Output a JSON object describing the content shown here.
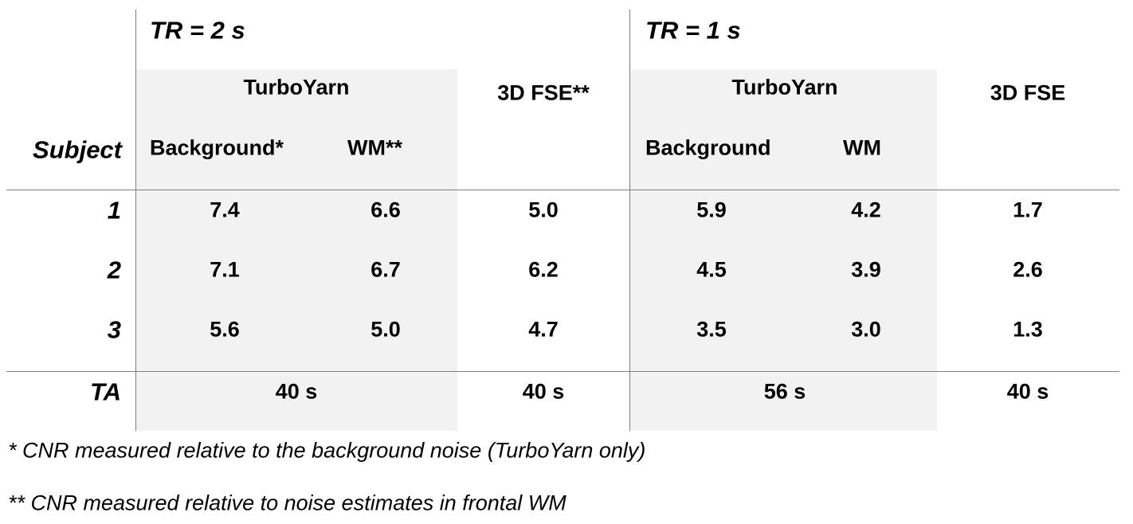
{
  "groups": [
    {
      "title": "TR = 2 s",
      "method": "TurboYarn",
      "columns": [
        "Background*",
        "WM**"
      ],
      "fse": "3D FSE**"
    },
    {
      "title": "TR = 1 s",
      "method": "TurboYarn",
      "columns": [
        "Background",
        "WM"
      ],
      "fse": "3D FSE"
    }
  ],
  "subject_header": "Subject",
  "rows": [
    {
      "label": "1",
      "values": [
        "7.4",
        "6.6",
        "5.0",
        "5.9",
        "4.2",
        "1.7"
      ]
    },
    {
      "label": "2",
      "values": [
        "7.1",
        "6.7",
        "6.2",
        "4.5",
        "3.9",
        "2.6"
      ]
    },
    {
      "label": "3",
      "values": [
        "5.6",
        "5.0",
        "4.7",
        "3.5",
        "3.0",
        "1.3"
      ]
    }
  ],
  "ta": {
    "label": "TA",
    "values": [
      "40 s",
      "40 s",
      "56 s",
      "40 s"
    ]
  },
  "footnotes": [
    "* CNR measured relative to the background noise (TurboYarn only)",
    "** CNR measured relative to noise estimates in frontal WM"
  ]
}
